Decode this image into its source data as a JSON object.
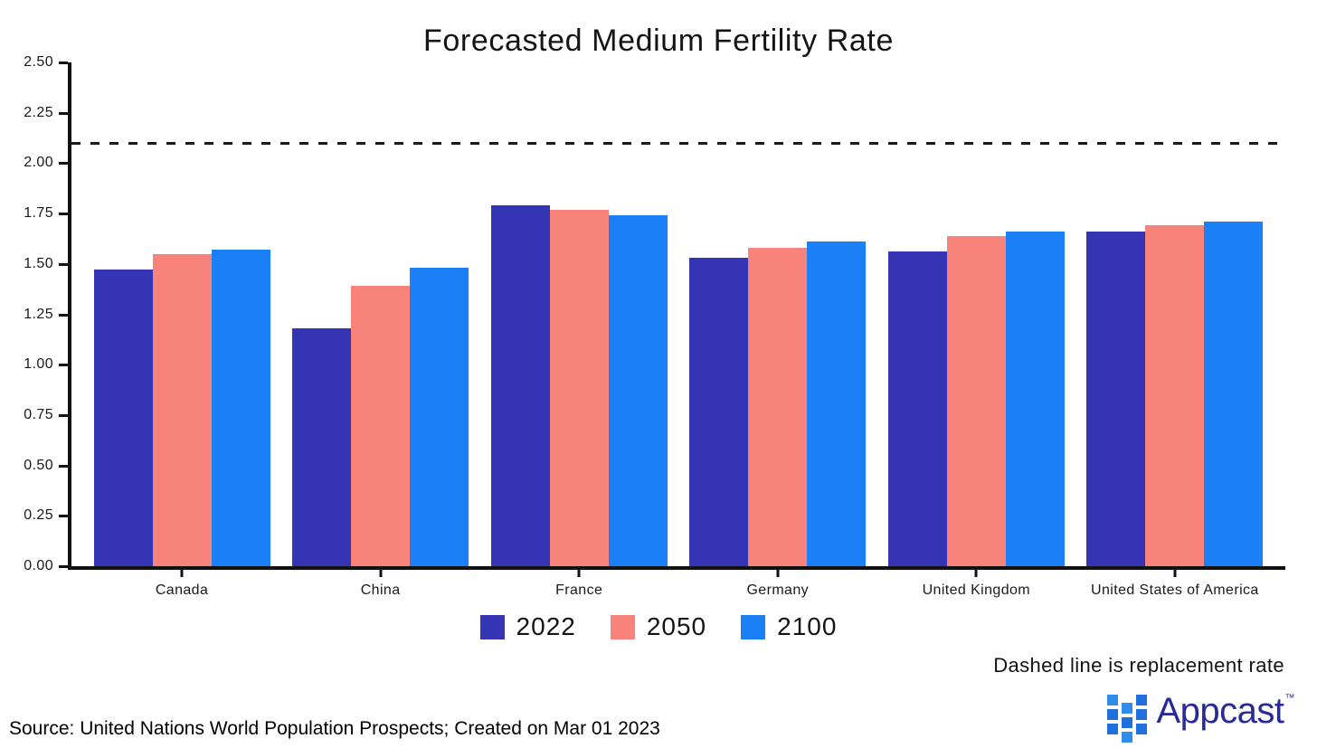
{
  "title": "Forecasted Medium Fertility Rate",
  "note": "Dashed line is replacement rate",
  "source": "Source: United Nations World Population Prospects; Created on Mar 01 2023",
  "logo": {
    "brand": "Appcast",
    "trademark": "™"
  },
  "colors": {
    "series_2022": "#3434b4",
    "series_2050": "#f8837b",
    "series_2100": "#1b80f5",
    "axis": "#111111",
    "dashed_line": "#1a1a1a",
    "logo_navy": "#2a2a96",
    "logo_blue": "#1f6fdd",
    "logo_blue_light": "#2f8ceb"
  },
  "chart_data": {
    "type": "bar",
    "title": "Forecasted Medium Fertility Rate",
    "categories": [
      "Canada",
      "China",
      "France",
      "Germany",
      "United Kingdom",
      "United States of America"
    ],
    "series": [
      {
        "name": "2022",
        "color": "#3434b4",
        "values": [
          1.47,
          1.18,
          1.79,
          1.53,
          1.56,
          1.66
        ]
      },
      {
        "name": "2050",
        "color": "#f8837b",
        "values": [
          1.55,
          1.39,
          1.77,
          1.58,
          1.64,
          1.69
        ]
      },
      {
        "name": "2100",
        "color": "#1b80f5",
        "values": [
          1.57,
          1.48,
          1.74,
          1.61,
          1.66,
          1.71
        ]
      }
    ],
    "xlabel": "",
    "ylabel": "",
    "ylim": [
      0,
      2.5
    ],
    "yticks": [
      0.0,
      0.25,
      0.5,
      0.75,
      1.0,
      1.25,
      1.5,
      1.75,
      2.0,
      2.25,
      2.5
    ],
    "ytick_format": "0.00",
    "replacement_rate": 2.1,
    "annotation": "Dashed line is replacement rate",
    "legend_position": "bottom",
    "grid": false
  }
}
